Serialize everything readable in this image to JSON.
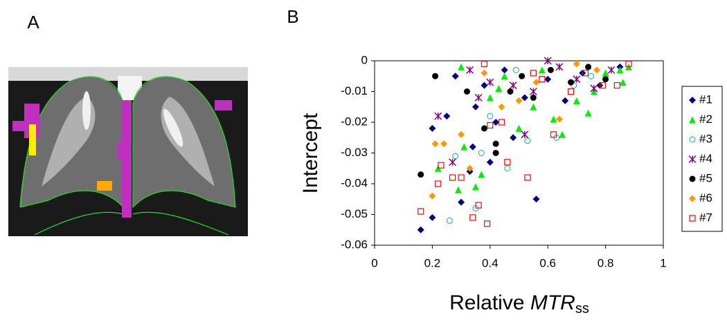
{
  "panel_labels": [
    "A",
    "B"
  ],
  "chart_data": {
    "type": "scatter",
    "ylabel": "Intercept",
    "xlabel_parts": [
      "Relative ",
      "MTR",
      "ss"
    ],
    "xlim": [
      0,
      1
    ],
    "xticks": [
      0,
      0.2,
      0.4,
      0.6,
      0.8,
      1
    ],
    "ylim": [
      -0.06,
      0
    ],
    "yticks": [
      -0.06,
      -0.05,
      -0.04,
      -0.03,
      -0.02,
      -0.01,
      0
    ],
    "grid": false,
    "legend": "right",
    "series": [
      {
        "name": "#1",
        "color": "#000080",
        "marker": "diamond",
        "x": [
          0.16,
          0.2,
          0.2,
          0.25,
          0.28,
          0.3,
          0.33,
          0.35,
          0.38,
          0.42,
          0.45,
          0.48,
          0.52,
          0.56,
          0.6,
          0.66,
          0.72,
          0.78,
          0.85,
          0.34,
          0.4
        ],
        "values": [
          -0.055,
          -0.051,
          -0.022,
          -0.018,
          -0.005,
          -0.046,
          -0.036,
          -0.015,
          -0.008,
          -0.02,
          -0.003,
          -0.025,
          -0.012,
          -0.045,
          -0.006,
          -0.013,
          -0.004,
          -0.008,
          -0.002,
          -0.028,
          -0.033
        ]
      },
      {
        "name": "#2",
        "color": "#00ee00",
        "marker": "triangle",
        "x": [
          0.22,
          0.29,
          0.3,
          0.35,
          0.37,
          0.4,
          0.45,
          0.5,
          0.55,
          0.58,
          0.62,
          0.65,
          0.7,
          0.74,
          0.76,
          0.8,
          0.85,
          0.88,
          0.86,
          0.31,
          0.43
        ],
        "values": [
          -0.035,
          -0.042,
          -0.002,
          -0.041,
          -0.037,
          -0.012,
          -0.005,
          -0.022,
          -0.015,
          -0.003,
          -0.019,
          -0.024,
          -0.013,
          -0.017,
          -0.01,
          -0.004,
          -0.003,
          -0.002,
          -0.007,
          -0.028,
          -0.009
        ]
      },
      {
        "name": "#3",
        "color": "#00b0b0",
        "marker": "open-circle",
        "x": [
          0.26,
          0.28,
          0.35,
          0.37,
          0.46,
          0.49,
          0.53,
          0.63,
          0.69,
          0.75,
          0.4
        ],
        "values": [
          -0.052,
          -0.031,
          -0.048,
          -0.03,
          -0.035,
          -0.003,
          -0.026,
          -0.025,
          -0.008,
          -0.005,
          -0.018
        ]
      },
      {
        "name": "#4",
        "color": "#800080",
        "marker": "asterisk",
        "x": [
          0.22,
          0.27,
          0.33,
          0.36,
          0.4,
          0.48,
          0.55,
          0.6,
          0.64,
          0.7,
          0.76,
          0.82,
          0.52
        ],
        "values": [
          -0.018,
          -0.033,
          -0.003,
          -0.012,
          -0.007,
          -0.008,
          -0.01,
          0,
          -0.002,
          -0.006,
          -0.009,
          -0.003,
          -0.024
        ]
      },
      {
        "name": "#5",
        "color": "#000000",
        "marker": "circle",
        "x": [
          0.16,
          0.21,
          0.32,
          0.38,
          0.42,
          0.47,
          0.51,
          0.55,
          0.61,
          0.68,
          0.74,
          0.8,
          0.42
        ],
        "values": [
          -0.037,
          -0.005,
          -0.01,
          -0.022,
          -0.027,
          -0.01,
          -0.005,
          -0.012,
          -0.003,
          -0.007,
          -0.002,
          -0.006,
          -0.03
        ]
      },
      {
        "name": "#6",
        "color": "#ff9900",
        "marker": "diamond",
        "x": [
          0.2,
          0.21,
          0.24,
          0.3,
          0.38,
          0.44,
          0.5,
          0.56,
          0.64,
          0.7,
          0.77,
          0.33
        ],
        "values": [
          -0.044,
          -0.027,
          -0.027,
          -0.024,
          -0.004,
          -0.015,
          -0.013,
          -0.007,
          -0.019,
          -0.001,
          -0.003,
          -0.035
        ]
      },
      {
        "name": "#7",
        "color": "#ff0000",
        "marker": "open-square",
        "x": [
          0.16,
          0.22,
          0.23,
          0.27,
          0.3,
          0.34,
          0.36,
          0.39,
          0.4,
          0.38,
          0.44,
          0.53,
          0.55,
          0.58,
          0.62,
          0.68,
          0.73,
          0.79,
          0.84,
          0.88,
          0.46
        ],
        "values": [
          -0.049,
          -0.04,
          -0.034,
          -0.038,
          -0.038,
          -0.051,
          -0.047,
          -0.053,
          -0.021,
          -0.001,
          -0.02,
          -0.038,
          -0.004,
          -0.006,
          -0.024,
          -0.01,
          -0.004,
          -0.008,
          -0.008,
          -0.001,
          -0.033
        ]
      }
    ]
  }
}
